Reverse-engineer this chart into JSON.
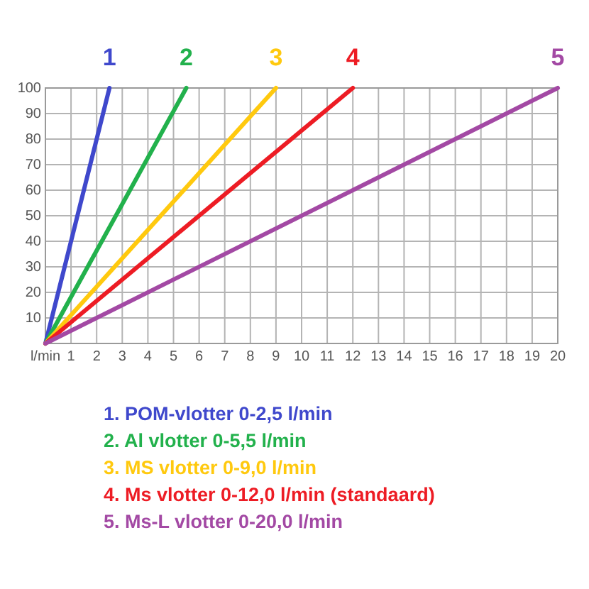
{
  "chart_data": {
    "type": "line",
    "xlim": [
      0,
      20
    ],
    "ylim": [
      0,
      100
    ],
    "xticks": [
      {
        "value": 0,
        "label": "l/min"
      },
      1,
      2,
      3,
      4,
      5,
      6,
      7,
      8,
      9,
      10,
      11,
      12,
      13,
      14,
      15,
      16,
      17,
      18,
      19,
      20
    ],
    "yticks": [
      {
        "value": 0,
        "label": null
      },
      10,
      20,
      30,
      40,
      50,
      60,
      70,
      80,
      90,
      100
    ],
    "grid": true,
    "legend": "bottom",
    "series": [
      {
        "name": "1. POM-vlotter 0-2,5 l/min",
        "color": "#3f48cc",
        "x": [
          0,
          2.5
        ],
        "values": [
          0,
          100
        ]
      },
      {
        "name": "2. Al vlotter 0-5,5 l/min",
        "color": "#22b14c",
        "x": [
          0,
          5.5
        ],
        "values": [
          0,
          100
        ]
      },
      {
        "name": "3. MS vlotter 0-9,0 l/min",
        "color": "#ffc90e",
        "x": [
          0,
          9
        ],
        "values": [
          0,
          100
        ]
      },
      {
        "name": "4. Ms vlotter 0-12,0 l/min (standaard)",
        "color": "#ed1c24",
        "x": [
          0,
          12
        ],
        "values": [
          0,
          100
        ]
      },
      {
        "name": "5. Ms-L vlotter 0-20,0 l/min",
        "color": "#a349a4",
        "x": [
          0,
          20
        ],
        "values": [
          0,
          100
        ]
      }
    ],
    "annotations": [
      {
        "text": "1",
        "x": 2.5,
        "y": 100
      },
      {
        "text": "2",
        "x": 5.5,
        "y": 100
      },
      {
        "text": "3",
        "x": 9,
        "y": 100
      },
      {
        "text": "4",
        "x": 12,
        "y": 100
      },
      {
        "text": "5",
        "x": 20,
        "y": 100
      }
    ]
  }
}
